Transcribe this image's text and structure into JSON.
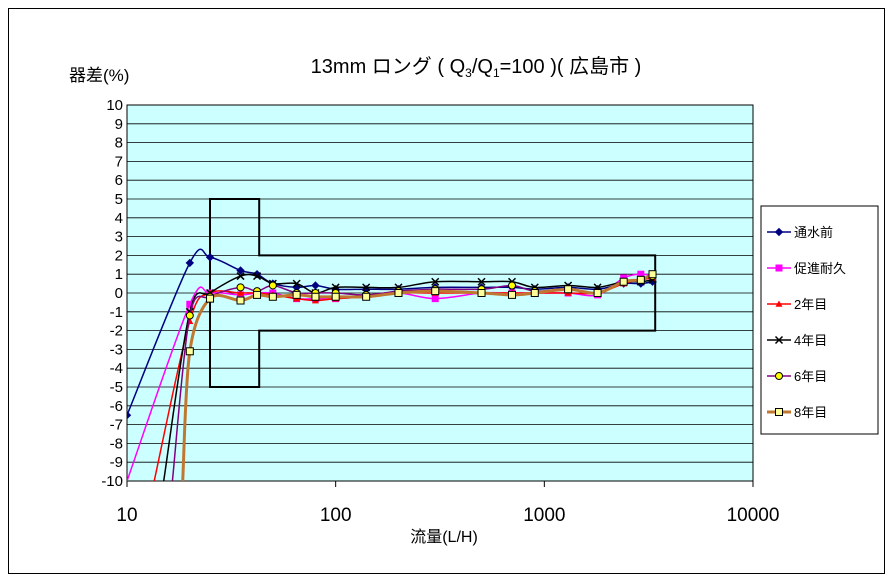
{
  "chart_data": {
    "type": "line",
    "title_parts": {
      "prefix": "13mm ロング ( Q",
      "sub1": "3",
      "slash": "/Q",
      "sub2": "1",
      "suffix": "=100 )( 広島市 )"
    },
    "ylabel": "器差(%)",
    "xlabel": "流量(L/H)",
    "x_scale": "log",
    "xlim": [
      10,
      10000
    ],
    "ylim": [
      -10,
      10
    ],
    "x_ticks": [
      "10",
      "100",
      "1000",
      "10000"
    ],
    "y_ticks": [
      "10",
      "9",
      "8",
      "7",
      "6",
      "5",
      "4",
      "3",
      "2",
      "1",
      "0",
      "-1",
      "-2",
      "-3",
      "-4",
      "-5",
      "-6",
      "-7",
      "-8",
      "-9",
      "-10"
    ],
    "grid": true,
    "legend_position": "right",
    "plot_background": "#ccffff",
    "tolerance_envelope": {
      "x": [
        25,
        25,
        43,
        43,
        3400,
        3400,
        43,
        43,
        25,
        25
      ],
      "y": [
        5,
        -5,
        -5,
        -2,
        -2,
        2,
        2,
        5,
        5,
        -5
      ]
    },
    "series": [
      {
        "name": "通水前",
        "color": "#000080",
        "marker": "diamond",
        "x": [
          10,
          20,
          25,
          35,
          42,
          50,
          65,
          80,
          100,
          140,
          200,
          300,
          500,
          700,
          900,
          1300,
          1800,
          2400,
          2900,
          3300
        ],
        "y": [
          -6.5,
          1.6,
          1.9,
          1.2,
          1.0,
          0.5,
          0.3,
          0.4,
          0.2,
          0.2,
          0.2,
          0.3,
          0.3,
          0.3,
          0.2,
          0.3,
          0.2,
          0.5,
          0.5,
          0.6
        ]
      },
      {
        "name": "促進耐久",
        "color": "#ff00ff",
        "marker": "square",
        "x": [
          10,
          20,
          25,
          35,
          42,
          50,
          65,
          80,
          100,
          140,
          200,
          300,
          500,
          700,
          900,
          1300,
          1800,
          2400,
          2900,
          3300
        ],
        "y": [
          -10,
          -0.6,
          0.0,
          -0.1,
          0.0,
          0.0,
          -0.3,
          -0.3,
          -0.3,
          -0.2,
          0.0,
          -0.3,
          0.0,
          0.0,
          0.0,
          0.0,
          -0.1,
          0.8,
          1.0,
          0.9
        ]
      },
      {
        "name": "2年目",
        "color": "#ff0000",
        "marker": "triangle",
        "x": [
          13.5,
          20,
          25,
          35,
          42,
          50,
          65,
          80,
          100,
          140,
          200,
          300,
          500,
          700,
          900,
          1300,
          1800,
          2400,
          2900,
          3300
        ],
        "y": [
          -10,
          -1.5,
          0.0,
          0.0,
          0.0,
          -0.1,
          -0.3,
          -0.4,
          -0.3,
          -0.2,
          0.0,
          0.0,
          0.0,
          0.0,
          0.0,
          0.0,
          0.0,
          0.5,
          0.7,
          0.8
        ]
      },
      {
        "name": "4年目",
        "color": "#000000",
        "marker": "x",
        "x": [
          15,
          20,
          25,
          35,
          42,
          50,
          65,
          80,
          100,
          140,
          200,
          300,
          500,
          700,
          900,
          1300,
          1800,
          2400,
          2900,
          3300
        ],
        "y": [
          -10,
          -1.0,
          0.0,
          0.9,
          0.9,
          0.5,
          0.5,
          0.0,
          0.3,
          0.3,
          0.3,
          0.6,
          0.6,
          0.6,
          0.3,
          0.4,
          0.3,
          0.6,
          0.6,
          0.7
        ]
      },
      {
        "name": "6年目",
        "color": "#800080",
        "marker": "circle",
        "x": [
          16.5,
          20,
          25,
          35,
          42,
          50,
          65,
          80,
          100,
          140,
          200,
          300,
          500,
          700,
          900,
          1300,
          1800,
          2400,
          2900,
          3300
        ],
        "y": [
          -10,
          -1.2,
          -0.2,
          0.3,
          0.1,
          0.4,
          0.0,
          0.0,
          0.0,
          -0.1,
          0.1,
          0.2,
          0.2,
          0.4,
          0.1,
          0.2,
          0.0,
          0.6,
          0.7,
          0.9
        ]
      },
      {
        "name": "8年目",
        "color": "#c07830",
        "marker": "square-open",
        "x": [
          18.5,
          20,
          25,
          35,
          42,
          50,
          65,
          80,
          100,
          140,
          200,
          300,
          500,
          700,
          900,
          1300,
          1800,
          2400,
          2900,
          3300
        ],
        "y": [
          -10,
          -3.1,
          -0.3,
          -0.4,
          -0.1,
          -0.2,
          -0.1,
          -0.2,
          -0.2,
          -0.2,
          0.0,
          0.1,
          0.0,
          -0.1,
          0.0,
          0.2,
          0.0,
          0.6,
          0.7,
          1.0
        ]
      }
    ]
  }
}
